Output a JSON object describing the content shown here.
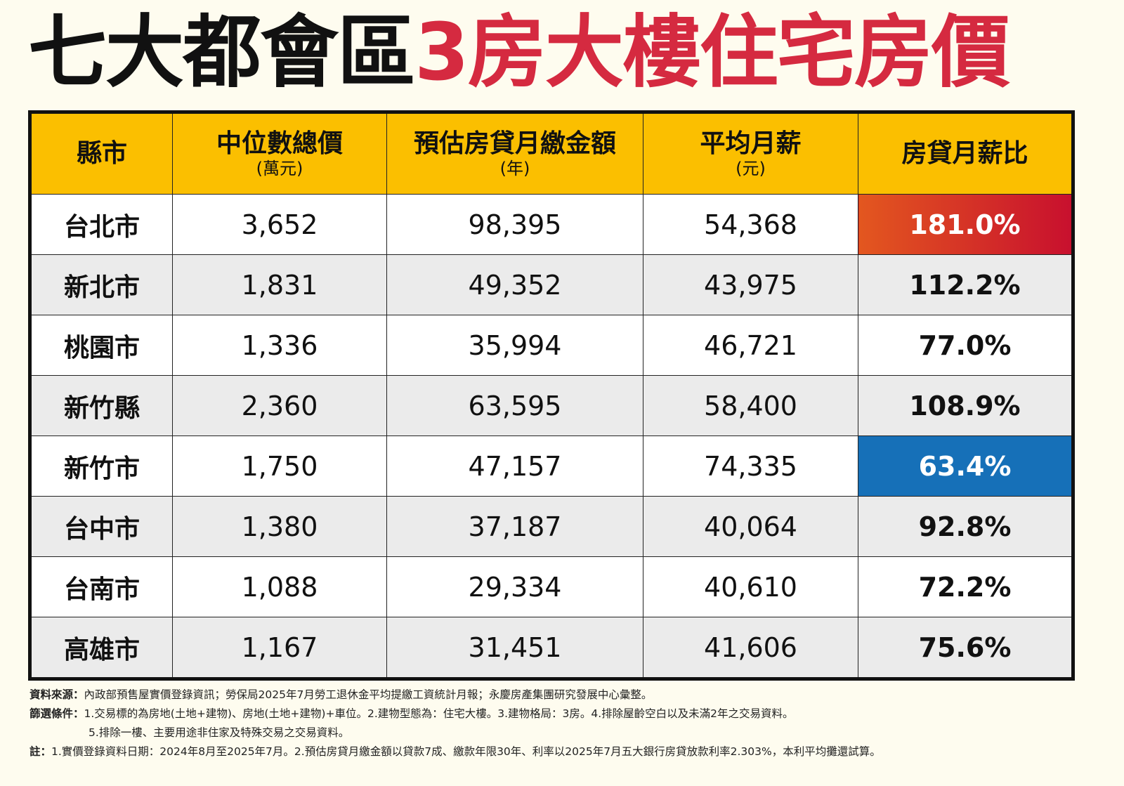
{
  "title": {
    "part1": "七大都會區",
    "part2": "3房大樓住宅房價"
  },
  "colors": {
    "header": "#fbbf00",
    "title_red": "#d52a40",
    "high": "#c8102e",
    "low": "#1670b8"
  },
  "chart_data": {
    "type": "table",
    "title": "七大都會區3房大樓住宅房價",
    "columns": [
      {
        "label": "縣市",
        "unit": ""
      },
      {
        "label": "中位數總價",
        "unit": "(萬元)"
      },
      {
        "label": "預估房貸月繳金額",
        "unit": "(年)"
      },
      {
        "label": "平均月薪",
        "unit": "(元)"
      },
      {
        "label": "房貸月薪比",
        "unit": ""
      }
    ],
    "rows": [
      [
        "台北市",
        "3,652",
        "98,395",
        "54,368",
        "181.0%"
      ],
      [
        "新北市",
        "1,831",
        "49,352",
        "43,975",
        "112.2%"
      ],
      [
        "桃園市",
        "1,336",
        "35,994",
        "46,721",
        "77.0%"
      ],
      [
        "新竹縣",
        "2,360",
        "63,595",
        "58,400",
        "108.9%"
      ],
      [
        "新竹市",
        "1,750",
        "47,157",
        "74,335",
        "63.4%"
      ],
      [
        "台中市",
        "1,380",
        "37,187",
        "40,064",
        "92.8%"
      ],
      [
        "台南市",
        "1,088",
        "29,334",
        "40,610",
        "72.2%"
      ],
      [
        "高雄市",
        "1,167",
        "31,451",
        "41,606",
        "75.6%"
      ]
    ],
    "highlight_max_row": 0,
    "highlight_min_row": 4
  },
  "notes": {
    "source_label": "資料來源：",
    "source_text": "內政部預售屋實價登錄資訊；勞保局2025年7月勞工退休金平均提繳工資統計月報；永慶房產集團研究發展中心彙整。",
    "filter_label": "篩選條件：",
    "filter_text1": "1.交易標的為房地(土地+建物)、房地(土地+建物)+車位。2.建物型態為：住宅大樓。3.建物格局：3房。4.排除屋齡空白以及未滿2年之交易資料。",
    "filter_text2": "5.排除一樓、主要用途非住家及特殊交易之交易資料。",
    "note_label": "註：",
    "note_text": "1.實價登錄資料日期：2024年8月至2025年7月。2.預估房貸月繳金額以貸款7成、繳款年限30年、利率以2025年7月五大銀行房貸放款利率2.303%，本利平均攤還試算。"
  }
}
